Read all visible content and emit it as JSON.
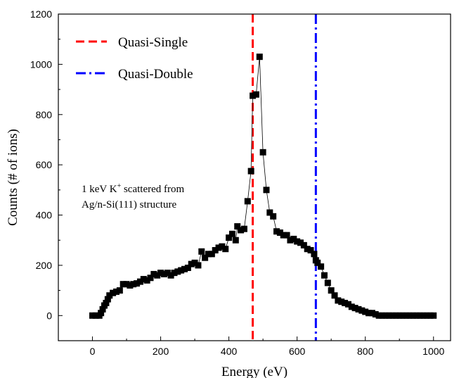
{
  "chart_data": {
    "type": "scatter",
    "title": "",
    "xlabel": "Energy (eV)",
    "ylabel": "Counts (# of ions)",
    "xlim": [
      -100,
      1050
    ],
    "ylim": [
      -100,
      1200
    ],
    "x_ticks": [
      0,
      200,
      400,
      600,
      800,
      1000
    ],
    "y_ticks": [
      0,
      200,
      400,
      600,
      800,
      1000,
      1200
    ],
    "grid": false,
    "legend_position": "top-left",
    "series": [
      {
        "marker": "square",
        "color": "#000000",
        "line": "connected",
        "points": [
          [
            0,
            0
          ],
          [
            10,
            0
          ],
          [
            20,
            0
          ],
          [
            25,
            10
          ],
          [
            30,
            25
          ],
          [
            35,
            40
          ],
          [
            40,
            50
          ],
          [
            45,
            65
          ],
          [
            50,
            80
          ],
          [
            60,
            90
          ],
          [
            70,
            95
          ],
          [
            80,
            100
          ],
          [
            90,
            125
          ],
          [
            100,
            125
          ],
          [
            110,
            120
          ],
          [
            120,
            125
          ],
          [
            130,
            128
          ],
          [
            140,
            135
          ],
          [
            150,
            145
          ],
          [
            160,
            140
          ],
          [
            170,
            150
          ],
          [
            180,
            165
          ],
          [
            190,
            160
          ],
          [
            200,
            170
          ],
          [
            210,
            165
          ],
          [
            220,
            170
          ],
          [
            230,
            160
          ],
          [
            240,
            170
          ],
          [
            250,
            175
          ],
          [
            260,
            180
          ],
          [
            270,
            185
          ],
          [
            280,
            190
          ],
          [
            290,
            205
          ],
          [
            300,
            210
          ],
          [
            310,
            200
          ],
          [
            320,
            255
          ],
          [
            330,
            230
          ],
          [
            340,
            245
          ],
          [
            350,
            245
          ],
          [
            360,
            260
          ],
          [
            370,
            270
          ],
          [
            380,
            275
          ],
          [
            390,
            265
          ],
          [
            400,
            310
          ],
          [
            410,
            325
          ],
          [
            420,
            300
          ],
          [
            425,
            355
          ],
          [
            435,
            340
          ],
          [
            445,
            345
          ],
          [
            455,
            455
          ],
          [
            465,
            575
          ],
          [
            470,
            875
          ],
          [
            480,
            880
          ],
          [
            490,
            1030
          ],
          [
            500,
            650
          ],
          [
            510,
            500
          ],
          [
            520,
            410
          ],
          [
            530,
            395
          ],
          [
            540,
            335
          ],
          [
            550,
            330
          ],
          [
            560,
            320
          ],
          [
            570,
            320
          ],
          [
            580,
            300
          ],
          [
            590,
            305
          ],
          [
            600,
            295
          ],
          [
            610,
            290
          ],
          [
            620,
            280
          ],
          [
            630,
            265
          ],
          [
            640,
            260
          ],
          [
            650,
            245
          ],
          [
            655,
            220
          ],
          [
            660,
            210
          ],
          [
            670,
            195
          ],
          [
            680,
            160
          ],
          [
            690,
            130
          ],
          [
            700,
            100
          ],
          [
            710,
            80
          ],
          [
            720,
            60
          ],
          [
            730,
            55
          ],
          [
            740,
            50
          ],
          [
            750,
            45
          ],
          [
            760,
            35
          ],
          [
            770,
            30
          ],
          [
            780,
            25
          ],
          [
            790,
            20
          ],
          [
            800,
            15
          ],
          [
            810,
            10
          ],
          [
            820,
            10
          ],
          [
            830,
            5
          ],
          [
            840,
            0
          ],
          [
            850,
            0
          ],
          [
            860,
            0
          ],
          [
            870,
            0
          ],
          [
            880,
            0
          ],
          [
            890,
            0
          ],
          [
            900,
            0
          ],
          [
            910,
            0
          ],
          [
            920,
            0
          ],
          [
            930,
            0
          ],
          [
            940,
            0
          ],
          [
            950,
            0
          ],
          [
            960,
            0
          ],
          [
            970,
            0
          ],
          [
            980,
            0
          ],
          [
            990,
            0
          ],
          [
            1000,
            0
          ]
        ]
      }
    ],
    "vertical_lines": [
      {
        "name": "Quasi-Single",
        "x": 470,
        "color": "#ff0000",
        "style": "dashed"
      },
      {
        "name": "Quasi-Double",
        "x": 655,
        "color": "#0000ff",
        "style": "dash-dot"
      }
    ],
    "annotation": {
      "line1_pre": "1 keV K",
      "line1_sup": "+",
      "line1_post": " scattered from",
      "line2": "Ag/n-Si(111) structure"
    }
  }
}
